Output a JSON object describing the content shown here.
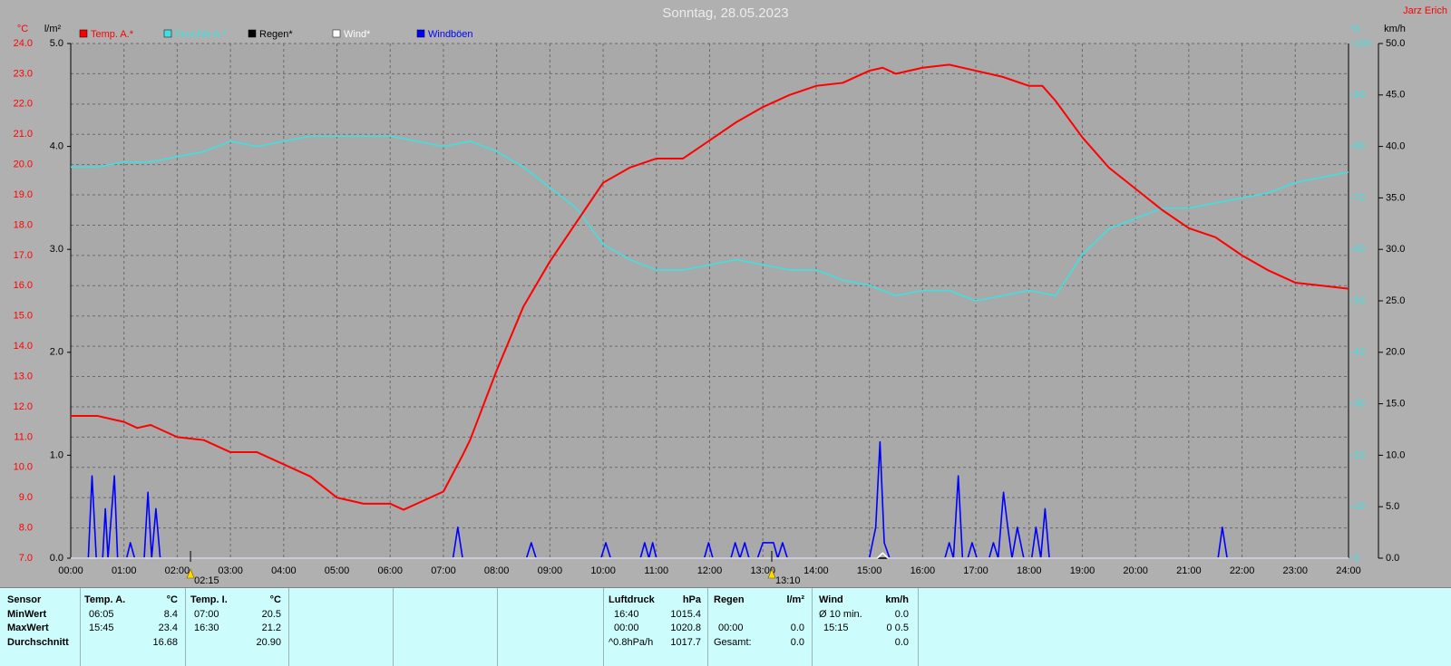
{
  "chart_data": {
    "type": "line",
    "title": "Sonntag, 28.05.2023",
    "author": "Jarz Erich",
    "y_label": "°C",
    "y2_label": "l/m²",
    "y3_label": "%",
    "y4_label": "km/h",
    "xlim": [
      0,
      24
    ],
    "xticks": [
      {
        "value": 0,
        "label": "00:00"
      },
      {
        "value": 1,
        "label": "01:00"
      },
      {
        "value": 2,
        "label": "02:00"
      },
      {
        "value": 3,
        "label": "03:00"
      },
      {
        "value": 4,
        "label": "04:00"
      },
      {
        "value": 5,
        "label": "05:00"
      },
      {
        "value": 6,
        "label": "06:00"
      },
      {
        "value": 7,
        "label": "07:00"
      },
      {
        "value": 8,
        "label": "08:00"
      },
      {
        "value": 9,
        "label": "09:00"
      },
      {
        "value": 10,
        "label": "10:00"
      },
      {
        "value": 11,
        "label": "11:00"
      },
      {
        "value": 12,
        "label": "12:00"
      },
      {
        "value": 13,
        "label": "13:00"
      },
      {
        "value": 14,
        "label": "14:00"
      },
      {
        "value": 15,
        "label": "15:00"
      },
      {
        "value": 16,
        "label": "16:00"
      },
      {
        "value": 17,
        "label": "17:00"
      },
      {
        "value": 18,
        "label": "18:00"
      },
      {
        "value": 19,
        "label": "19:00"
      },
      {
        "value": 20,
        "label": "20:00"
      },
      {
        "value": 21,
        "label": "21:00"
      },
      {
        "value": 22,
        "label": "22:00"
      },
      {
        "value": 23,
        "label": "23:00"
      },
      {
        "value": 24,
        "label": "24:00"
      }
    ],
    "ylim": [
      7,
      24
    ],
    "yticks": [
      {
        "value": 7,
        "label": "7.0"
      },
      {
        "value": 8,
        "label": "8.0"
      },
      {
        "value": 9,
        "label": "9.0"
      },
      {
        "value": 10,
        "label": "10.0"
      },
      {
        "value": 11,
        "label": "11.0"
      },
      {
        "value": 12,
        "label": "12.0"
      },
      {
        "value": 13,
        "label": "13.0"
      },
      {
        "value": 14,
        "label": "14.0"
      },
      {
        "value": 15,
        "label": "15.0"
      },
      {
        "value": 16,
        "label": "16.0"
      },
      {
        "value": 17,
        "label": "17.0"
      },
      {
        "value": 18,
        "label": "18.0"
      },
      {
        "value": 19,
        "label": "19.0"
      },
      {
        "value": 20,
        "label": "20.0"
      },
      {
        "value": 21,
        "label": "21.0"
      },
      {
        "value": 22,
        "label": "22.0"
      },
      {
        "value": 23,
        "label": "23.0"
      },
      {
        "value": 24,
        "label": "24.0"
      }
    ],
    "y2lim": [
      0,
      5
    ],
    "y2ticks": [
      {
        "value": 0,
        "label": "0.0"
      },
      {
        "value": 1,
        "label": "1.0"
      },
      {
        "value": 2,
        "label": "2.0"
      },
      {
        "value": 3,
        "label": "3.0"
      },
      {
        "value": 4,
        "label": "4.0"
      },
      {
        "value": 5,
        "label": "5.0"
      }
    ],
    "y3lim": [
      0,
      100
    ],
    "y3ticks": [
      0,
      10,
      20,
      30,
      40,
      50,
      60,
      70,
      80,
      90,
      100
    ],
    "y4lim": [
      0,
      50
    ],
    "y4ticks": [
      {
        "value": 0,
        "label": "0.0"
      },
      {
        "value": 5,
        "label": "5.0"
      },
      {
        "value": 10,
        "label": "10.0"
      },
      {
        "value": 15,
        "label": "15.0"
      },
      {
        "value": 20,
        "label": "20.0"
      },
      {
        "value": 25,
        "label": "25.0"
      },
      {
        "value": 30,
        "label": "30.0"
      },
      {
        "value": 35,
        "label": "35.0"
      },
      {
        "value": 40,
        "label": "40.0"
      },
      {
        "value": 45,
        "label": "45.0"
      },
      {
        "value": 50,
        "label": "50.0"
      }
    ],
    "grid": true,
    "series": [
      {
        "name": "Temp. A.*",
        "color": "#ff0000",
        "axis": "y",
        "x": [
          0,
          0.5,
          1,
          1.25,
          1.5,
          2,
          2.5,
          3,
          3.5,
          4,
          4.5,
          5,
          5.5,
          6,
          6.25,
          6.5,
          7,
          7.36,
          7.5,
          8,
          8.5,
          9,
          9.5,
          10,
          10.5,
          11,
          11.5,
          12,
          12.5,
          13,
          13.5,
          14,
          14.5,
          15,
          15.25,
          15.5,
          16,
          16.5,
          17,
          17.5,
          18,
          18.25,
          18.5,
          19,
          19.5,
          20,
          20.5,
          21,
          21.5,
          22,
          22.5,
          23,
          23.5,
          24
        ],
        "values": [
          11.7,
          11.7,
          11.5,
          11.3,
          11.4,
          11.0,
          10.9,
          10.5,
          10.5,
          10.1,
          9.7,
          9.0,
          8.8,
          8.8,
          8.6,
          8.8,
          9.2,
          10.4,
          10.9,
          13.2,
          15.3,
          16.8,
          18.1,
          19.4,
          19.9,
          20.2,
          20.2,
          20.8,
          21.4,
          21.9,
          22.3,
          22.6,
          22.7,
          23.1,
          23.2,
          23.0,
          23.2,
          23.3,
          23.1,
          22.9,
          22.6,
          22.6,
          22.1,
          20.9,
          19.9,
          19.2,
          18.5,
          17.9,
          17.6,
          17.0,
          16.5,
          16.1,
          16.0,
          15.9
        ]
      },
      {
        "name": "Feuchte A.*",
        "color": "#40e0e0",
        "axis": "y3",
        "x": [
          0,
          0.5,
          1,
          1.5,
          2,
          2.5,
          3,
          3.5,
          4,
          4.5,
          5,
          5.5,
          6,
          6.5,
          7,
          7.5,
          8,
          8.5,
          9,
          9.5,
          10,
          10.5,
          11,
          11.5,
          12,
          12.5,
          13,
          13.5,
          14,
          14.5,
          15,
          15.5,
          16,
          16.5,
          17,
          17.5,
          18,
          18.5,
          19,
          19.5,
          20,
          20.5,
          21,
          21.5,
          22,
          22.5,
          23,
          23.5,
          24
        ],
        "values": [
          76,
          76,
          77,
          77,
          78,
          79,
          81,
          80,
          81,
          82,
          82,
          82,
          82,
          81,
          80,
          81,
          79,
          76,
          72,
          68,
          61,
          58,
          56,
          56,
          57,
          58,
          57,
          56,
          56,
          54,
          53,
          51,
          52,
          52,
          50,
          51,
          52,
          51,
          59,
          64,
          66,
          68,
          68,
          69,
          70,
          71,
          73,
          74,
          75
        ]
      },
      {
        "name": "Regen*",
        "color": "#000000",
        "axis": "y2",
        "x": [
          0,
          24
        ],
        "values": [
          0,
          0
        ]
      },
      {
        "name": "Wind*",
        "color": "#ffffff",
        "axis": "y4",
        "x": [
          0,
          15.15,
          15.25,
          15.35,
          24
        ],
        "values": [
          0,
          0,
          0.5,
          0,
          0
        ]
      },
      {
        "name": "Windböen",
        "color": "#0000ff",
        "axis": "y4",
        "x": [
          0,
          0.33,
          0.4,
          0.48,
          0.6,
          0.65,
          0.7,
          0.82,
          0.88,
          1.05,
          1.12,
          1.2,
          1.38,
          1.45,
          1.52,
          1.6,
          1.68,
          7.18,
          7.27,
          7.36,
          8.56,
          8.65,
          8.74,
          9.96,
          10.05,
          10.14,
          10.7,
          10.78,
          10.86,
          10.93,
          11.0,
          11.9,
          11.98,
          12.06,
          12.4,
          12.48,
          12.57,
          12.66,
          12.74,
          12.9,
          13.0,
          13.2,
          13.28,
          13.37,
          13.46,
          15.0,
          15.12,
          15.2,
          15.28,
          15.38,
          16.42,
          16.5,
          16.58,
          16.67,
          16.75,
          16.85,
          16.93,
          17.02,
          17.25,
          17.33,
          17.42,
          17.52,
          17.6,
          17.68,
          17.78,
          17.9,
          18.05,
          18.13,
          18.22,
          18.3,
          18.38,
          21.55,
          21.63,
          21.72,
          24
        ],
        "values": [
          0,
          0,
          8.0,
          0,
          0,
          4.8,
          0,
          8.0,
          0,
          0,
          1.5,
          0,
          0,
          6.4,
          0,
          4.8,
          0,
          0,
          3.0,
          0,
          0,
          1.5,
          0,
          0,
          1.5,
          0,
          0,
          1.5,
          0,
          1.5,
          0,
          0,
          1.5,
          0,
          0,
          1.5,
          0,
          1.5,
          0,
          0,
          1.5,
          1.5,
          0,
          1.5,
          0,
          0,
          3.0,
          11.3,
          1.5,
          0,
          0,
          1.5,
          0,
          8.0,
          0,
          0,
          1.5,
          0,
          0,
          1.5,
          0,
          6.4,
          3.0,
          0,
          3.0,
          0,
          0,
          3.0,
          0,
          4.8,
          0,
          0,
          3.0,
          0,
          0
        ]
      }
    ],
    "annotations": [
      {
        "text": "02:15",
        "x": 2.25
      },
      {
        "text": "13:10",
        "x": 13.1667
      }
    ]
  },
  "stats": {
    "labels": [
      "Sensor",
      "MinWert",
      "MaxWert",
      "Durchschnitt"
    ],
    "temp_a": {
      "header": [
        "Temp. A.",
        "°C"
      ],
      "min": [
        "06:05",
        "8.4"
      ],
      "max": [
        "15:45",
        "23.4"
      ],
      "avg": "16.68"
    },
    "temp_i": {
      "header": [
        "Temp. I.",
        "°C"
      ],
      "min": [
        "07:00",
        "20.5"
      ],
      "max": [
        "16:30",
        "21.2"
      ],
      "avg": "20.90"
    },
    "pressure": {
      "header": [
        "Luftdruck",
        "hPa"
      ],
      "min": [
        "16:40",
        "1015.4"
      ],
      "max": [
        "00:00",
        "1020.8"
      ],
      "trend": [
        "^0.8hPa/h",
        "1017.7"
      ]
    },
    "rain": {
      "header": [
        "Regen",
        "l/m²"
      ],
      "max": [
        "00:00",
        "0.0"
      ],
      "total": [
        "Gesamt:",
        "0.0"
      ]
    },
    "wind": {
      "header": [
        "Wind",
        "km/h"
      ],
      "min": [
        "Ø 10 min.",
        "0.0"
      ],
      "max": [
        "15:15",
        "0 0.5"
      ],
      "avg": "0.0"
    }
  }
}
